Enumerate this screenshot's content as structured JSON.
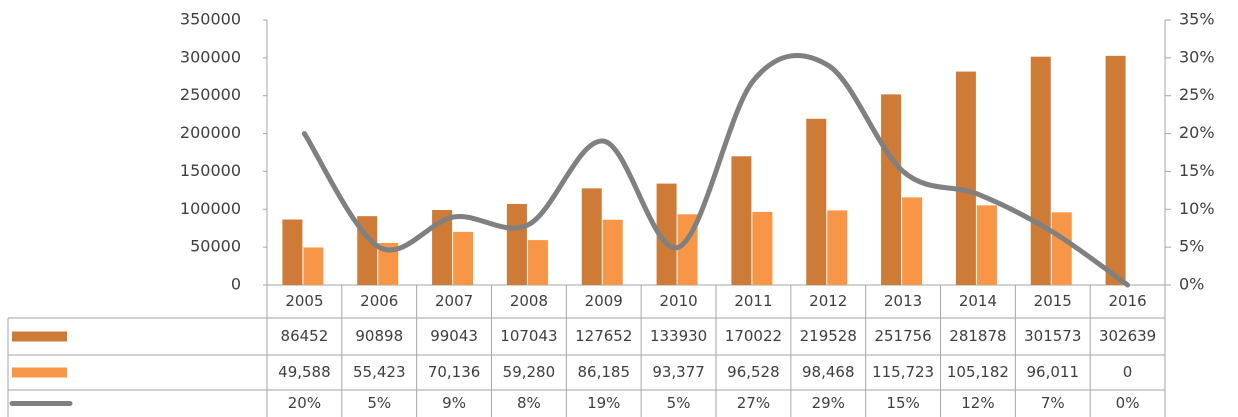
{
  "chart_data": {
    "type": "bar_line_table",
    "categories": [
      "2005",
      "2006",
      "2007",
      "2008",
      "2009",
      "2010",
      "2011",
      "2012",
      "2013",
      "2014",
      "2015",
      "2016"
    ],
    "series": [
      {
        "type": "bar",
        "color": "#cd7b37",
        "values": [
          86452,
          90898,
          99043,
          107043,
          127652,
          133930,
          170022,
          219528,
          251756,
          281878,
          301573,
          302639
        ]
      },
      {
        "type": "bar",
        "color": "#f79646",
        "values": [
          49588,
          55423,
          70136,
          59280,
          86185,
          93377,
          96528,
          98468,
          115723,
          105182,
          96011,
          0
        ],
        "value_labels": [
          "49,588",
          "55,423",
          "70,136",
          "59,280",
          "86,185",
          "93,377",
          "96,528",
          "98,468",
          "115,723",
          "105,182",
          "96,011",
          "0"
        ]
      },
      {
        "type": "line",
        "axis": "y2",
        "color": "#808080",
        "values": [
          20,
          5,
          9,
          8,
          19,
          5,
          27,
          29,
          15,
          12,
          7,
          0
        ],
        "value_labels": [
          "20%",
          "5%",
          "9%",
          "8%",
          "19%",
          "5%",
          "27%",
          "29%",
          "15%",
          "12%",
          "7%",
          "0%"
        ]
      }
    ],
    "ylim": [
      0,
      350000
    ],
    "yticks": [
      0,
      50000,
      100000,
      150000,
      200000,
      250000,
      300000,
      350000
    ],
    "y2lim": [
      0,
      35
    ],
    "y2ticks": [
      {
        "value": 0,
        "label": "0%"
      },
      {
        "value": 5,
        "label": "5%"
      },
      {
        "value": 10,
        "label": "10%"
      },
      {
        "value": 15,
        "label": "15%"
      },
      {
        "value": 20,
        "label": "20%"
      },
      {
        "value": 25,
        "label": "25%"
      },
      {
        "value": 30,
        "label": "30%"
      },
      {
        "value": 35,
        "label": "35%"
      }
    ]
  }
}
